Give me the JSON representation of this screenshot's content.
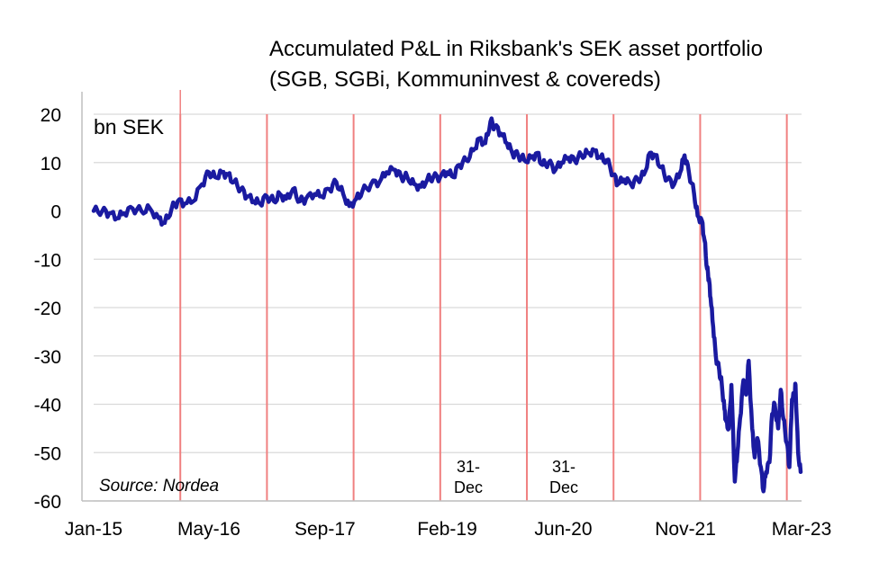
{
  "chart_data": {
    "type": "line",
    "title_line1": "Accumulated P&L in Riksbank's SEK asset portfolio",
    "title_line2": "(SGB, SGBi, Kommuninvest & covereds)",
    "unit_label": "bn SEK",
    "source": "Source: Nordea",
    "ylim": [
      -60,
      20
    ],
    "yticks": [
      "20",
      "10",
      "0",
      "-10",
      "-20",
      "-30",
      "-40",
      "-50",
      "-60"
    ],
    "ytick_values": [
      20,
      10,
      0,
      -10,
      -20,
      -30,
      -40,
      -50,
      -60
    ],
    "x_tick_labels": [
      "Jan-15",
      "May-16",
      "Sep-17",
      "Feb-19",
      "Jun-20",
      "Nov-21",
      "Mar-23"
    ],
    "x_tick_values": [
      2015.0,
      2016.33,
      2017.67,
      2019.08,
      2020.42,
      2021.83,
      2023.17
    ],
    "xlim": [
      2015.0,
      2023.17
    ],
    "grid": true,
    "vlines": [
      2016.0,
      2017.0,
      2018.0,
      2019.0,
      2020.0,
      2021.0,
      2022.0,
      2023.0
    ],
    "vline_color": "#f08080",
    "line_color": "#1a1aa0",
    "annotations": [
      {
        "text_line1": "31-",
        "text_line2": "Dec",
        "x": 2019.6
      },
      {
        "text_line1": "31-",
        "text_line2": "Dec",
        "x": 2020.6
      }
    ],
    "series": [
      {
        "name": "",
        "points": [
          [
            2015.0,
            0
          ],
          [
            2015.1,
            0
          ],
          [
            2015.18,
            -0.5
          ],
          [
            2015.27,
            -1.5
          ],
          [
            2015.35,
            -0.5
          ],
          [
            2015.45,
            0.5
          ],
          [
            2015.55,
            0
          ],
          [
            2015.65,
            0.5
          ],
          [
            2015.75,
            -1.5
          ],
          [
            2015.82,
            -2.5
          ],
          [
            2015.9,
            0.5
          ],
          [
            2015.97,
            2.0
          ],
          [
            2016.05,
            1.5
          ],
          [
            2016.15,
            2.0
          ],
          [
            2016.25,
            5.5
          ],
          [
            2016.33,
            8.0
          ],
          [
            2016.4,
            7.0
          ],
          [
            2016.48,
            8.0
          ],
          [
            2016.55,
            7.5
          ],
          [
            2016.62,
            6.0
          ],
          [
            2016.7,
            4.5
          ],
          [
            2016.77,
            3.0
          ],
          [
            2016.85,
            2.0
          ],
          [
            2016.92,
            1.5
          ],
          [
            2017.0,
            3.0
          ],
          [
            2017.08,
            2.0
          ],
          [
            2017.15,
            3.5
          ],
          [
            2017.22,
            2.5
          ],
          [
            2017.3,
            4.5
          ],
          [
            2017.38,
            2.0
          ],
          [
            2017.45,
            2.5
          ],
          [
            2017.55,
            3.5
          ],
          [
            2017.63,
            3.0
          ],
          [
            2017.72,
            4.5
          ],
          [
            2017.8,
            6.0
          ],
          [
            2017.88,
            3.5
          ],
          [
            2017.95,
            1.0
          ],
          [
            2018.03,
            2.5
          ],
          [
            2018.1,
            4.0
          ],
          [
            2018.2,
            5.5
          ],
          [
            2018.3,
            6.0
          ],
          [
            2018.38,
            8.0
          ],
          [
            2018.48,
            8.5
          ],
          [
            2018.55,
            7.0
          ],
          [
            2018.62,
            7.0
          ],
          [
            2018.7,
            5.5
          ],
          [
            2018.78,
            5.0
          ],
          [
            2018.85,
            6.5
          ],
          [
            2018.92,
            7.0
          ],
          [
            2019.0,
            7.0
          ],
          [
            2019.08,
            8.0
          ],
          [
            2019.15,
            7.0
          ],
          [
            2019.22,
            9.5
          ],
          [
            2019.3,
            10.5
          ],
          [
            2019.38,
            12.5
          ],
          [
            2019.45,
            15.0
          ],
          [
            2019.52,
            14.0
          ],
          [
            2019.58,
            18.5
          ],
          [
            2019.63,
            17.5
          ],
          [
            2019.7,
            16.0
          ],
          [
            2019.77,
            14.0
          ],
          [
            2019.83,
            12.0
          ],
          [
            2019.9,
            11.5
          ],
          [
            2019.97,
            10.5
          ],
          [
            2020.05,
            11.0
          ],
          [
            2020.12,
            12.0
          ],
          [
            2020.18,
            9.5
          ],
          [
            2020.25,
            10.0
          ],
          [
            2020.33,
            8.5
          ],
          [
            2020.4,
            10.0
          ],
          [
            2020.48,
            11.0
          ],
          [
            2020.55,
            10.5
          ],
          [
            2020.63,
            11.5
          ],
          [
            2020.7,
            12.0
          ],
          [
            2020.78,
            12.5
          ],
          [
            2020.85,
            11.0
          ],
          [
            2020.92,
            10.5
          ],
          [
            2021.0,
            7.5
          ],
          [
            2021.05,
            5.5
          ],
          [
            2021.12,
            6.5
          ],
          [
            2021.2,
            5.5
          ],
          [
            2021.28,
            6.5
          ],
          [
            2021.35,
            7.5
          ],
          [
            2021.42,
            12.0
          ],
          [
            2021.48,
            11.5
          ],
          [
            2021.55,
            9.0
          ],
          [
            2021.62,
            6.5
          ],
          [
            2021.7,
            5.5
          ],
          [
            2021.77,
            8.0
          ],
          [
            2021.82,
            11.5
          ],
          [
            2021.87,
            8.0
          ],
          [
            2021.93,
            3.5
          ],
          [
            2021.97,
            -1.0
          ],
          [
            2022.02,
            -2.0
          ],
          [
            2022.05,
            -6.0
          ],
          [
            2022.08,
            -12.0
          ],
          [
            2022.1,
            -14.0
          ],
          [
            2022.12,
            -18.0
          ],
          [
            2022.15,
            -24.0
          ],
          [
            2022.18,
            -30.0
          ],
          [
            2022.22,
            -33.0
          ],
          [
            2022.25,
            -36.0
          ],
          [
            2022.28,
            -41.0
          ],
          [
            2022.3,
            -43.5
          ],
          [
            2022.33,
            -45.0
          ],
          [
            2022.36,
            -36.0
          ],
          [
            2022.4,
            -56.0
          ],
          [
            2022.43,
            -50.0
          ],
          [
            2022.46,
            -43.0
          ],
          [
            2022.5,
            -35.0
          ],
          [
            2022.53,
            -38.0
          ],
          [
            2022.56,
            -31.0
          ],
          [
            2022.6,
            -45.0
          ],
          [
            2022.63,
            -51.0
          ],
          [
            2022.66,
            -47.0
          ],
          [
            2022.7,
            -53.0
          ],
          [
            2022.73,
            -58.0
          ],
          [
            2022.76,
            -54.0
          ],
          [
            2022.8,
            -52.0
          ],
          [
            2022.83,
            -42.0
          ],
          [
            2022.86,
            -40.0
          ],
          [
            2022.9,
            -45.0
          ],
          [
            2022.93,
            -37.0
          ],
          [
            2022.96,
            -43.0
          ],
          [
            2023.0,
            -48.0
          ],
          [
            2023.03,
            -53.0
          ],
          [
            2023.06,
            -39.0
          ],
          [
            2023.09,
            -38.0
          ],
          [
            2023.1,
            -36.0
          ],
          [
            2023.13,
            -50.0
          ],
          [
            2023.16,
            -54.0
          ]
        ]
      }
    ]
  }
}
